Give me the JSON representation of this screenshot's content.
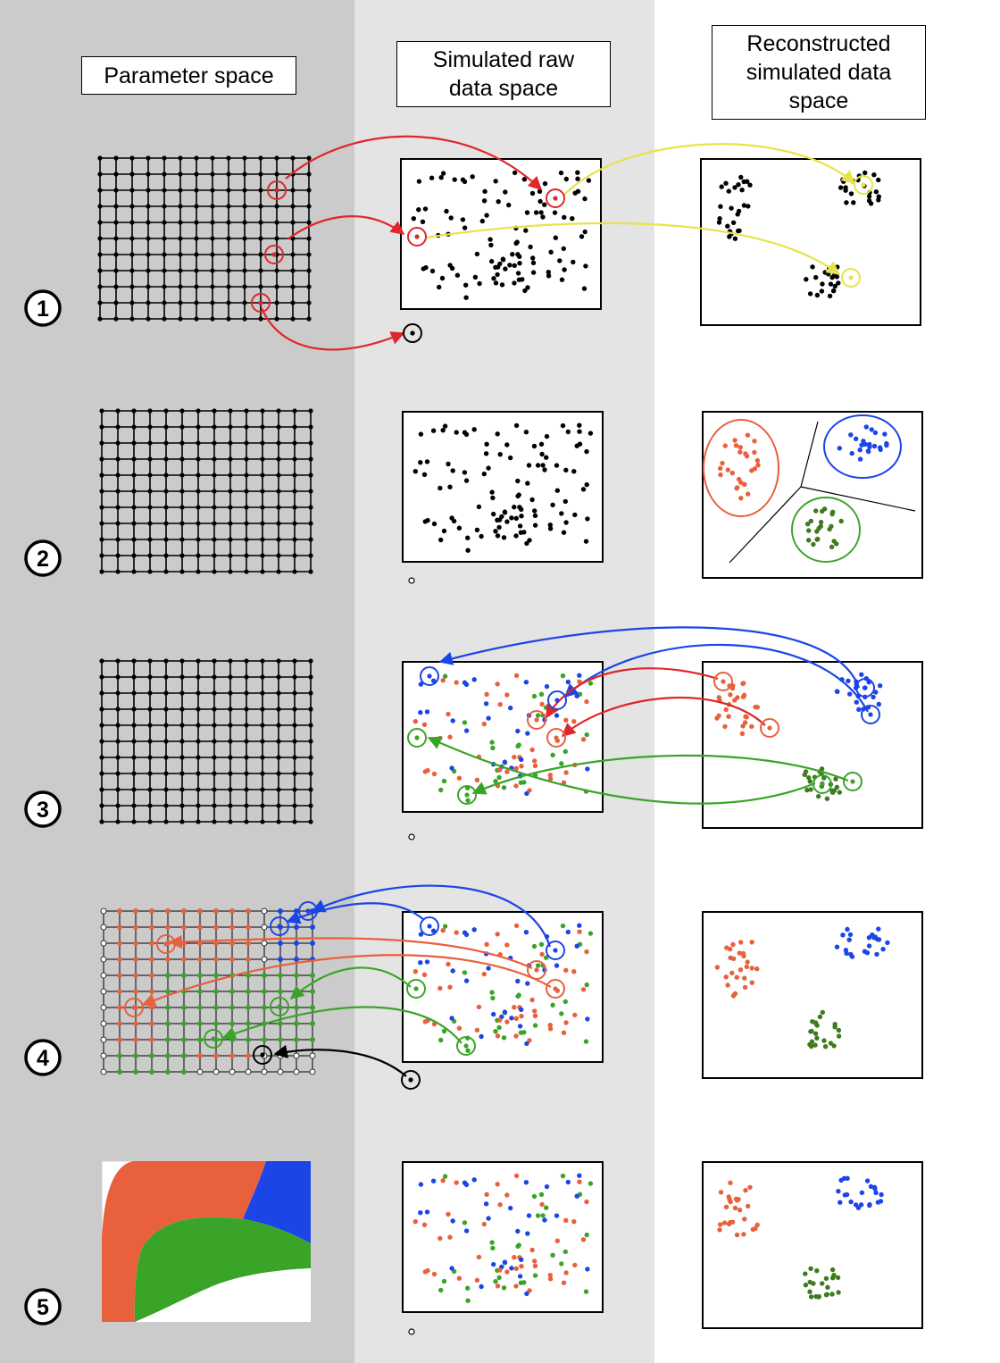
{
  "headers": {
    "parameter_space": "Parameter space",
    "raw_data_space": "Simulated raw\ndata space",
    "reconstructed_space": "Reconstructed\nsimulated data\nspace"
  },
  "steps": [
    "1",
    "2",
    "3",
    "4",
    "5"
  ],
  "colors": {
    "left_column_bg": "#cbcbcb",
    "middle_column_bg": "#e4e4e4",
    "red_arrow": "#e0262b",
    "yellow_arrow": "#e6e34a",
    "blue": "#1b45e6",
    "orange": "#e8603c",
    "green": "#3aa428",
    "dark_green": "#3f7a1e",
    "black": "#000000"
  },
  "icons": [
    "step-number-circle",
    "circled-point-marker",
    "curved-arrow"
  ]
}
